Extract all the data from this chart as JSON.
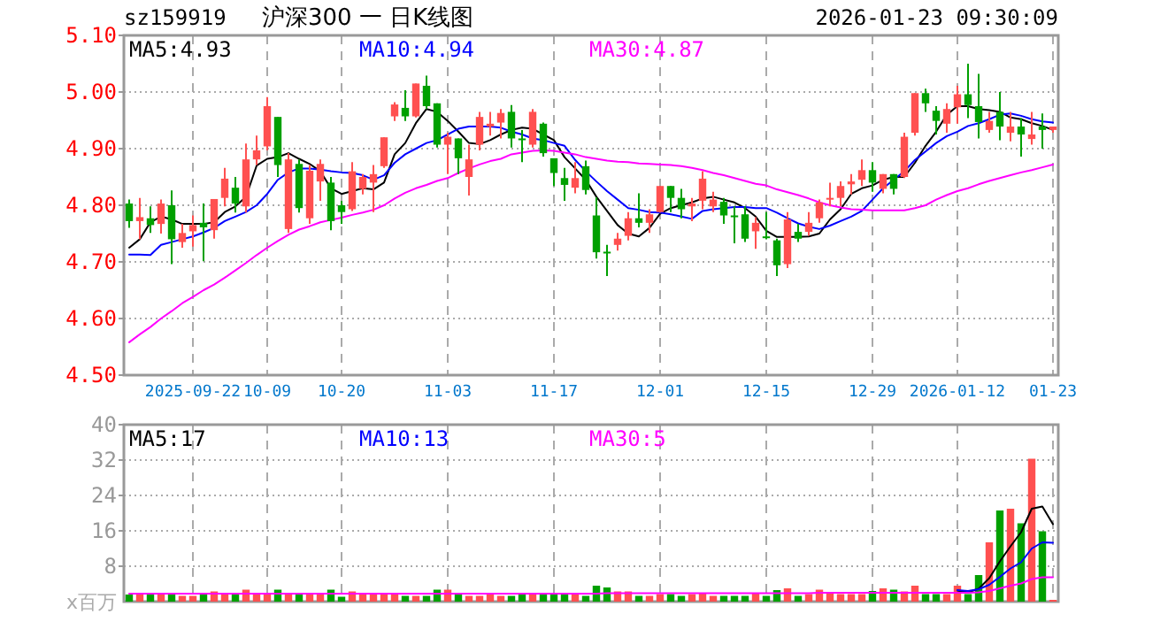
{
  "chart_data": [
    {
      "type": "candlestick",
      "title": "沪深300 一 日K线图",
      "subtitle": "sz159919",
      "annotations": [
        "2026-01-23 09:30:09"
      ],
      "categories": [
        null,
        null,
        null,
        null,
        null,
        null,
        "2025-09-22",
        null,
        null,
        null,
        null,
        null,
        null,
        "10-09",
        null,
        null,
        null,
        null,
        null,
        null,
        "10-20",
        null,
        null,
        null,
        null,
        null,
        null,
        null,
        null,
        null,
        "11-03",
        null,
        null,
        null,
        null,
        null,
        null,
        null,
        null,
        null,
        "11-17",
        null,
        null,
        null,
        null,
        null,
        null,
        null,
        null,
        null,
        "12-01",
        null,
        null,
        null,
        null,
        null,
        null,
        null,
        null,
        null,
        "12-15",
        null,
        null,
        null,
        null,
        null,
        null,
        null,
        null,
        null,
        "12-29",
        null,
        null,
        null,
        null,
        null,
        null,
        null,
        "2026-01-12",
        null,
        null,
        null,
        null,
        null,
        null,
        null,
        null,
        "01-23"
      ],
      "ohlc": [
        [
          4.803,
          4.81,
          4.76,
          4.772
        ],
        [
          4.772,
          4.813,
          4.74,
          4.779
        ],
        [
          4.777,
          4.798,
          4.751,
          4.765
        ],
        [
          4.767,
          4.81,
          4.75,
          4.803
        ],
        [
          4.8,
          4.826,
          4.696,
          4.74
        ],
        [
          4.735,
          4.767,
          4.725,
          4.751
        ],
        [
          4.754,
          4.782,
          4.727,
          4.765
        ],
        [
          4.769,
          4.803,
          4.701,
          4.761
        ],
        [
          4.756,
          4.811,
          4.741,
          4.811
        ],
        [
          4.813,
          4.866,
          4.798,
          4.847
        ],
        [
          4.831,
          4.85,
          4.787,
          4.803
        ],
        [
          4.798,
          4.909,
          4.787,
          4.881
        ],
        [
          4.881,
          4.923,
          4.871,
          4.897
        ],
        [
          4.904,
          4.991,
          4.897,
          4.975
        ],
        [
          4.956,
          4.956,
          4.85,
          4.871
        ],
        [
          4.758,
          4.892,
          4.751,
          4.881
        ],
        [
          4.873,
          4.881,
          4.787,
          4.795
        ],
        [
          4.777,
          4.871,
          4.767,
          4.861
        ],
        [
          4.842,
          4.881,
          4.808,
          4.873
        ],
        [
          4.84,
          4.85,
          4.756,
          4.772
        ],
        [
          4.8,
          4.808,
          4.767,
          4.788
        ],
        [
          4.793,
          4.876,
          4.79,
          4.86
        ],
        [
          4.829,
          4.855,
          4.819,
          4.85
        ],
        [
          4.84,
          4.871,
          4.788,
          4.855
        ],
        [
          4.869,
          4.92,
          4.866,
          4.92
        ],
        [
          4.957,
          4.982,
          4.949,
          4.978
        ],
        [
          4.972,
          5.003,
          4.949,
          4.957
        ],
        [
          4.957,
          5.015,
          4.955,
          5.015
        ],
        [
          5.011,
          5.029,
          4.97,
          4.975
        ],
        [
          4.98,
          4.98,
          4.902,
          4.907
        ],
        [
          4.907,
          4.928,
          4.855,
          4.921
        ],
        [
          4.918,
          4.918,
          4.855,
          4.883
        ],
        [
          4.85,
          4.907,
          4.817,
          4.881
        ],
        [
          4.907,
          4.965,
          4.897,
          4.956
        ],
        [
          4.939,
          4.965,
          4.923,
          4.944
        ],
        [
          4.946,
          4.97,
          4.918,
          4.963
        ],
        [
          4.965,
          4.977,
          4.902,
          4.918
        ],
        [
          4.918,
          4.933,
          4.876,
          4.915
        ],
        [
          4.907,
          4.97,
          4.902,
          4.965
        ],
        [
          4.944,
          4.946,
          4.886,
          4.892
        ],
        [
          4.883,
          4.883,
          4.834,
          4.857
        ],
        [
          4.848,
          4.866,
          4.808,
          4.836
        ],
        [
          4.831,
          4.876,
          4.821,
          4.848
        ],
        [
          4.869,
          4.879,
          4.819,
          4.827
        ],
        [
          4.782,
          4.814,
          4.706,
          4.717
        ],
        [
          4.718,
          4.73,
          4.675,
          4.715
        ],
        [
          4.73,
          4.751,
          4.72,
          4.741
        ],
        [
          4.746,
          4.788,
          4.738,
          4.777
        ],
        [
          4.777,
          4.821,
          4.761,
          4.769
        ],
        [
          4.769,
          4.793,
          4.751,
          4.784
        ],
        [
          4.788,
          4.834,
          4.787,
          4.834
        ],
        [
          4.834,
          4.834,
          4.788,
          4.813
        ],
        [
          4.813,
          4.829,
          4.777,
          4.793
        ],
        [
          4.798,
          4.813,
          4.772,
          4.803
        ],
        [
          4.808,
          4.86,
          4.793,
          4.847
        ],
        [
          4.798,
          4.824,
          4.788,
          4.81
        ],
        [
          4.806,
          4.813,
          4.767,
          4.782
        ],
        [
          4.782,
          4.798,
          4.733,
          4.78
        ],
        [
          4.784,
          4.798,
          4.735,
          4.741
        ],
        [
          4.754,
          4.779,
          4.723,
          4.769
        ],
        [
          4.745,
          4.788,
          4.74,
          4.743
        ],
        [
          4.738,
          4.741,
          4.675,
          4.694
        ],
        [
          4.696,
          4.788,
          4.689,
          4.775
        ],
        [
          4.753,
          4.767,
          4.735,
          4.741
        ],
        [
          4.753,
          4.788,
          4.746,
          4.769
        ],
        [
          4.777,
          4.81,
          4.769,
          4.805
        ],
        [
          4.81,
          4.84,
          4.798,
          4.813
        ],
        [
          4.813,
          4.842,
          4.798,
          4.834
        ],
        [
          4.837,
          4.855,
          4.819,
          4.842
        ],
        [
          4.845,
          4.881,
          4.834,
          4.862
        ],
        [
          4.862,
          4.876,
          4.824,
          4.84
        ],
        [
          4.829,
          4.855,
          4.821,
          4.855
        ],
        [
          4.855,
          4.855,
          4.819,
          4.829
        ],
        [
          4.85,
          4.928,
          4.848,
          4.921
        ],
        [
          4.928,
          4.998,
          4.923,
          4.998
        ],
        [
          4.998,
          5.006,
          4.965,
          4.98
        ],
        [
          4.967,
          4.975,
          4.925,
          4.949
        ],
        [
          4.944,
          4.98,
          4.928,
          4.97
        ],
        [
          4.973,
          5.011,
          4.944,
          4.996
        ],
        [
          4.996,
          5.05,
          4.954,
          4.977
        ],
        [
          4.975,
          5.032,
          4.918,
          4.947
        ],
        [
          4.933,
          4.965,
          4.928,
          4.949
        ],
        [
          4.965,
          5.0,
          4.915,
          4.939
        ],
        [
          4.928,
          4.965,
          4.913,
          4.939
        ],
        [
          4.939,
          4.954,
          4.886,
          4.925
        ],
        [
          4.917,
          4.965,
          4.907,
          4.925
        ],
        [
          4.939,
          4.962,
          4.9,
          4.933
        ],
        [
          4.933,
          4.939,
          4.928,
          4.939
        ]
      ],
      "colors": [
        "#00a000",
        "#ff5050",
        "#00a000",
        "#ff5050",
        "#00a000",
        "#ff5050",
        "#ff5050",
        "#00a000",
        "#ff5050",
        "#ff5050",
        "#00a000",
        "#ff5050",
        "#ff5050",
        "#ff5050",
        "#00a000",
        "#ff5050",
        "#00a000",
        "#ff5050",
        "#ff5050",
        "#00a000",
        "#00a000",
        "#ff5050",
        "#ff5050",
        "#ff5050",
        "#ff5050",
        "#ff5050",
        "#00a000",
        "#ff5050",
        "#00a000",
        "#00a000",
        "#ff5050",
        "#00a000",
        "#ff5050",
        "#ff5050",
        "#ff5050",
        "#ff5050",
        "#00a000",
        "#00a000",
        "#ff5050",
        "#00a000",
        "#00a000",
        "#00a000",
        "#ff5050",
        "#00a000",
        "#00a000",
        "#00a000",
        "#ff5050",
        "#ff5050",
        "#00a000",
        "#ff5050",
        "#ff5050",
        "#00a000",
        "#00a000",
        "#ff5050",
        "#ff5050",
        "#ff5050",
        "#00a000",
        "#00a000",
        "#00a000",
        "#ff5050",
        "#00a000",
        "#00a000",
        "#ff5050",
        "#00a000",
        "#ff5050",
        "#ff5050",
        "#ff5050",
        "#ff5050",
        "#ff5050",
        "#ff5050",
        "#00a000",
        "#ff5050",
        "#00a000",
        "#ff5050",
        "#ff5050",
        "#00a000",
        "#00a000",
        "#ff5050",
        "#ff5050",
        "#00a000",
        "#00a000",
        "#ff5050",
        "#00a000",
        "#ff5050",
        "#00a000",
        "#ff5050",
        "#00a000",
        "#ff5050"
      ],
      "series": [
        {
          "type": "line",
          "name": "MA5:4.93",
          "color": "#000000",
          "values": [
            4.725,
            4.74,
            4.77,
            4.78,
            4.775,
            4.767,
            4.767,
            4.767,
            4.77,
            4.788,
            4.798,
            4.815,
            4.87,
            4.882,
            4.885,
            4.892,
            4.882,
            4.873,
            4.86,
            4.83,
            4.82,
            4.825,
            4.83,
            4.828,
            4.84,
            4.89,
            4.91,
            4.945,
            4.97,
            4.965,
            4.949,
            4.93,
            4.91,
            4.908,
            4.915,
            4.925,
            4.933,
            4.937,
            4.935,
            4.925,
            4.915,
            4.885,
            4.865,
            4.845,
            4.815,
            4.79,
            4.765,
            4.75,
            4.745,
            4.76,
            4.785,
            4.795,
            4.8,
            4.805,
            4.812,
            4.815,
            4.81,
            4.805,
            4.795,
            4.78,
            4.755,
            4.744,
            4.744,
            4.744,
            4.745,
            4.75,
            4.775,
            4.793,
            4.82,
            4.83,
            4.835,
            4.845,
            4.85,
            4.85,
            4.875,
            4.905,
            4.93,
            4.96,
            4.975,
            4.975,
            4.97,
            4.968,
            4.965,
            4.955,
            4.952,
            4.945,
            4.94,
            4.933
          ]
        },
        {
          "type": "line",
          "name": "MA10:4.94",
          "color": "#0000ff",
          "values": [
            4.713,
            4.713,
            4.712,
            4.73,
            4.735,
            4.74,
            4.745,
            4.752,
            4.76,
            4.772,
            4.78,
            4.788,
            4.8,
            4.82,
            4.845,
            4.858,
            4.865,
            4.865,
            4.863,
            4.86,
            4.858,
            4.857,
            4.853,
            4.845,
            4.853,
            4.875,
            4.89,
            4.9,
            4.91,
            4.915,
            4.925,
            4.935,
            4.939,
            4.939,
            4.939,
            4.937,
            4.93,
            4.925,
            4.918,
            4.915,
            4.91,
            4.905,
            4.88,
            4.86,
            4.842,
            4.825,
            4.81,
            4.795,
            4.792,
            4.788,
            4.787,
            4.784,
            4.78,
            4.776,
            4.79,
            4.793,
            4.795,
            4.797,
            4.797,
            4.795,
            4.795,
            4.787,
            4.777,
            4.768,
            4.762,
            4.758,
            4.764,
            4.772,
            4.78,
            4.79,
            4.81,
            4.83,
            4.845,
            4.86,
            4.88,
            4.895,
            4.91,
            4.922,
            4.93,
            4.94,
            4.945,
            4.952,
            4.96,
            4.962,
            4.958,
            4.952,
            4.948,
            4.946
          ]
        },
        {
          "type": "line",
          "name": "MA30:4.87",
          "color": "#ff00ff",
          "values": [
            4.558,
            4.572,
            4.585,
            4.6,
            4.613,
            4.627,
            4.638,
            4.65,
            4.66,
            4.672,
            4.685,
            4.698,
            4.712,
            4.725,
            4.737,
            4.748,
            4.757,
            4.763,
            4.77,
            4.774,
            4.778,
            4.783,
            4.787,
            4.792,
            4.8,
            4.812,
            4.822,
            4.83,
            4.836,
            4.843,
            4.848,
            4.857,
            4.865,
            4.872,
            4.878,
            4.882,
            4.89,
            4.893,
            4.896,
            4.897,
            4.896,
            4.893,
            4.89,
            4.885,
            4.882,
            4.879,
            4.877,
            4.876,
            4.874,
            4.873,
            4.872,
            4.871,
            4.869,
            4.866,
            4.862,
            4.857,
            4.853,
            4.848,
            4.843,
            4.838,
            4.835,
            4.828,
            4.823,
            4.818,
            4.812,
            4.805,
            4.8,
            4.796,
            4.793,
            4.792,
            4.791,
            4.791,
            4.791,
            4.791,
            4.795,
            4.8,
            4.81,
            4.818,
            4.825,
            4.83,
            4.837,
            4.843,
            4.848,
            4.853,
            4.858,
            4.862,
            4.867,
            4.872
          ]
        }
      ],
      "ylim": [
        4.5,
        5.1
      ],
      "yticks": [
        {
          "value": 5.1,
          "label": "5.10"
        },
        {
          "value": 5.0,
          "label": "5.00"
        },
        {
          "value": 4.9,
          "label": "4.90"
        },
        {
          "value": 4.8,
          "label": "4.80"
        },
        {
          "value": 4.7,
          "label": "4.70"
        },
        {
          "value": 4.6,
          "label": "4.60"
        },
        {
          "value": 4.5,
          "label": "4.50"
        }
      ],
      "grid": true,
      "legend": "top left"
    },
    {
      "type": "bar",
      "annotations": [
        "x百万"
      ],
      "categories": [
        null,
        null,
        null,
        null,
        null,
        null,
        null,
        null,
        null,
        null,
        null,
        null,
        null,
        null,
        null,
        null,
        null,
        null,
        null,
        null,
        null,
        null,
        null,
        null,
        null,
        null,
        null,
        null,
        null,
        null,
        null,
        null,
        null,
        null,
        null,
        null,
        null,
        null,
        null,
        null,
        null,
        null,
        null,
        null,
        null,
        null,
        null,
        null,
        null,
        null,
        null,
        null,
        null,
        null,
        null,
        null,
        null,
        null,
        null,
        null,
        null,
        null,
        null,
        null,
        null,
        null,
        null,
        null,
        null,
        null,
        null,
        null,
        null,
        null,
        null,
        null,
        null,
        null,
        null,
        null,
        null,
        null,
        null,
        null,
        null,
        null,
        null,
        null
      ],
      "series": [
        {
          "type": "bar",
          "colors": [
            "#00a000",
            "#ff5050",
            "#00a000",
            "#ff5050",
            "#00a000",
            "#ff5050",
            "#ff5050",
            "#00a000",
            "#ff5050",
            "#ff5050",
            "#00a000",
            "#ff5050",
            "#ff5050",
            "#ff5050",
            "#00a000",
            "#ff5050",
            "#00a000",
            "#ff5050",
            "#ff5050",
            "#00a000",
            "#00a000",
            "#ff5050",
            "#ff5050",
            "#ff5050",
            "#ff5050",
            "#ff5050",
            "#00a000",
            "#ff5050",
            "#00a000",
            "#00a000",
            "#ff5050",
            "#00a000",
            "#ff5050",
            "#ff5050",
            "#ff5050",
            "#ff5050",
            "#00a000",
            "#00a000",
            "#ff5050",
            "#00a000",
            "#00a000",
            "#00a000",
            "#ff5050",
            "#00a000",
            "#00a000",
            "#00a000",
            "#ff5050",
            "#ff5050",
            "#00a000",
            "#ff5050",
            "#ff5050",
            "#00a000",
            "#00a000",
            "#ff5050",
            "#ff5050",
            "#ff5050",
            "#00a000",
            "#00a000",
            "#00a000",
            "#ff5050",
            "#00a000",
            "#00a000",
            "#ff5050",
            "#00a000",
            "#ff5050",
            "#ff5050",
            "#ff5050",
            "#ff5050",
            "#ff5050",
            "#ff5050",
            "#00a000",
            "#ff5050",
            "#00a000",
            "#ff5050",
            "#ff5050",
            "#00a000",
            "#00a000",
            "#ff5050",
            "#ff5050",
            "#00a000",
            "#00a000",
            "#ff5050",
            "#00a000",
            "#ff5050",
            "#00a000",
            "#ff5050",
            "#00a000",
            "#ff5050"
          ],
          "values": [
            1.6,
            1.6,
            1.6,
            1.6,
            1.6,
            1.3,
            1.3,
            1.6,
            2.3,
            1.6,
            1.6,
            2.7,
            1.6,
            1.6,
            2.7,
            1.6,
            1.6,
            1.6,
            1.6,
            2.7,
            1.1,
            2.3,
            1.6,
            1.6,
            1.6,
            1.6,
            1.3,
            1.3,
            1.3,
            2.7,
            2.7,
            1.6,
            1.3,
            1.3,
            1.6,
            1.3,
            1.3,
            1.6,
            1.6,
            1.6,
            1.6,
            1.6,
            1.6,
            1.3,
            3.6,
            3.2,
            2.3,
            2.3,
            1.3,
            1.3,
            1.7,
            1.7,
            1.3,
            1.7,
            2.0,
            1.3,
            1.3,
            1.3,
            1.3,
            2.0,
            1.3,
            2.6,
            3.0,
            1.3,
            1.7,
            2.7,
            2.0,
            1.7,
            1.7,
            1.7,
            2.4,
            3.0,
            2.7,
            2.3,
            3.6,
            1.7,
            1.7,
            1.7,
            3.6,
            1.7,
            6.0,
            13.4,
            20.6,
            21.0,
            17.7,
            32.3,
            15.9,
            0.4
          ]
        },
        {
          "type": "line",
          "name": "MA5:17",
          "color": "#000000",
          "values": [
            null,
            null,
            null,
            null,
            null,
            null,
            null,
            null,
            null,
            null,
            null,
            null,
            null,
            null,
            null,
            null,
            null,
            null,
            null,
            null,
            null,
            null,
            null,
            null,
            null,
            null,
            null,
            null,
            null,
            null,
            null,
            null,
            null,
            null,
            null,
            null,
            null,
            null,
            null,
            null,
            null,
            null,
            null,
            null,
            null,
            null,
            null,
            null,
            null,
            null,
            null,
            null,
            null,
            null,
            null,
            null,
            null,
            null,
            null,
            null,
            null,
            null,
            null,
            null,
            null,
            null,
            null,
            null,
            null,
            null,
            null,
            null,
            null,
            null,
            null,
            null,
            null,
            null,
            2.5,
            2.1,
            2.9,
            5.3,
            9.1,
            12.5,
            15.7,
            21.0,
            21.5,
            17.5
          ]
        },
        {
          "type": "line",
          "name": "MA10:13",
          "color": "#0000ff",
          "values": [
            null,
            null,
            null,
            null,
            null,
            null,
            null,
            null,
            null,
            null,
            null,
            null,
            null,
            null,
            null,
            null,
            null,
            null,
            null,
            null,
            null,
            null,
            null,
            null,
            null,
            null,
            null,
            null,
            null,
            null,
            null,
            null,
            null,
            null,
            null,
            null,
            null,
            null,
            null,
            null,
            null,
            null,
            null,
            null,
            null,
            null,
            null,
            null,
            null,
            null,
            null,
            null,
            null,
            null,
            null,
            null,
            null,
            null,
            null,
            null,
            null,
            null,
            null,
            null,
            null,
            null,
            null,
            null,
            null,
            null,
            null,
            null,
            null,
            null,
            null,
            null,
            null,
            null,
            2.6,
            2.4,
            2.8,
            3.8,
            5.6,
            7.5,
            8.9,
            12.0,
            13.4,
            13.3
          ]
        },
        {
          "type": "line",
          "name": "MA30:5",
          "color": "#ff00ff",
          "values": [
            1.8,
            1.8,
            1.8,
            1.8,
            1.8,
            1.8,
            1.8,
            1.8,
            1.8,
            1.8,
            1.8,
            1.8,
            1.8,
            1.8,
            1.8,
            1.8,
            1.8,
            1.8,
            1.8,
            1.8,
            1.8,
            1.8,
            1.8,
            1.8,
            1.8,
            1.8,
            1.8,
            1.8,
            1.8,
            1.8,
            1.8,
            1.8,
            1.8,
            1.8,
            1.8,
            1.8,
            1.8,
            1.8,
            1.8,
            1.8,
            1.8,
            1.8,
            1.8,
            1.8,
            1.8,
            1.9,
            1.9,
            1.9,
            1.9,
            1.9,
            1.9,
            1.9,
            1.9,
            1.9,
            1.9,
            1.9,
            1.9,
            1.9,
            1.9,
            1.9,
            1.9,
            1.9,
            1.9,
            1.9,
            1.9,
            2.0,
            2.0,
            2.0,
            2.0,
            2.0,
            2.0,
            2.0,
            2.0,
            2.0,
            2.0,
            2.0,
            2.0,
            2.0,
            2.0,
            2.0,
            2.1,
            2.4,
            3.0,
            3.6,
            4.1,
            5.1,
            5.5,
            5.5
          ]
        }
      ],
      "ylim": [
        0,
        40
      ],
      "yticks": [
        8,
        16,
        24,
        32,
        40
      ],
      "grid": true,
      "legend": "top left"
    }
  ]
}
